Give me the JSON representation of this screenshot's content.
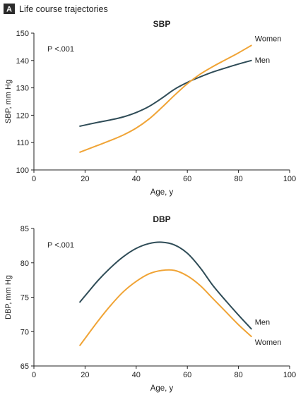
{
  "figure": {
    "panel_label": "A",
    "title": "Life course trajectories"
  },
  "colors": {
    "men": "#2f4c57",
    "women": "#f0a436",
    "axis": "#222222",
    "panel_label_bg": "#2b2b2b"
  },
  "chart_data": [
    {
      "type": "line",
      "title": "SBP",
      "xlabel": "Age, y",
      "ylabel": "SBP, mm Hg",
      "xlim": [
        0,
        100
      ],
      "ylim": [
        100,
        150
      ],
      "xticks": [
        0,
        20,
        40,
        60,
        80,
        100
      ],
      "yticks": [
        100,
        110,
        120,
        130,
        140,
        150
      ],
      "annotation": "P <.001",
      "grid": false,
      "series": [
        {
          "name": "Men",
          "color_key": "men",
          "x": [
            18,
            25,
            30,
            35,
            40,
            45,
            50,
            55,
            60,
            65,
            70,
            75,
            80,
            85
          ],
          "y": [
            116,
            117.4,
            118.3,
            119.4,
            121,
            123.2,
            126.2,
            129.5,
            132,
            134,
            135.8,
            137.3,
            138.7,
            140
          ]
        },
        {
          "name": "Women",
          "color_key": "women",
          "x": [
            18,
            25,
            30,
            35,
            40,
            45,
            50,
            55,
            60,
            65,
            70,
            75,
            80,
            85
          ],
          "y": [
            106.5,
            109,
            110.8,
            112.8,
            115.3,
            118.6,
            122.8,
            127.3,
            131.5,
            135,
            137.8,
            140.3,
            142.8,
            145.5
          ]
        }
      ]
    },
    {
      "type": "line",
      "title": "DBP",
      "xlabel": "Age, y",
      "ylabel": "DBP, mm Hg",
      "xlim": [
        0,
        100
      ],
      "ylim": [
        65,
        85
      ],
      "xticks": [
        0,
        20,
        40,
        60,
        80,
        100
      ],
      "yticks": [
        65,
        70,
        75,
        80,
        85
      ],
      "annotation": "P <.001",
      "grid": false,
      "series": [
        {
          "name": "Men",
          "color_key": "men",
          "x": [
            18,
            25,
            30,
            35,
            40,
            45,
            50,
            55,
            60,
            65,
            70,
            75,
            80,
            85
          ],
          "y": [
            74.3,
            77.4,
            79.3,
            80.9,
            82.1,
            82.8,
            83,
            82.6,
            81.4,
            79.3,
            76.7,
            74.5,
            72.4,
            70.4
          ]
        },
        {
          "name": "Women",
          "color_key": "women",
          "x": [
            18,
            25,
            30,
            35,
            40,
            45,
            50,
            55,
            60,
            65,
            70,
            75,
            80,
            85
          ],
          "y": [
            68,
            71.5,
            73.8,
            75.8,
            77.3,
            78.4,
            78.9,
            78.9,
            78.1,
            76.7,
            74.8,
            72.9,
            71,
            69.3
          ]
        }
      ]
    }
  ]
}
